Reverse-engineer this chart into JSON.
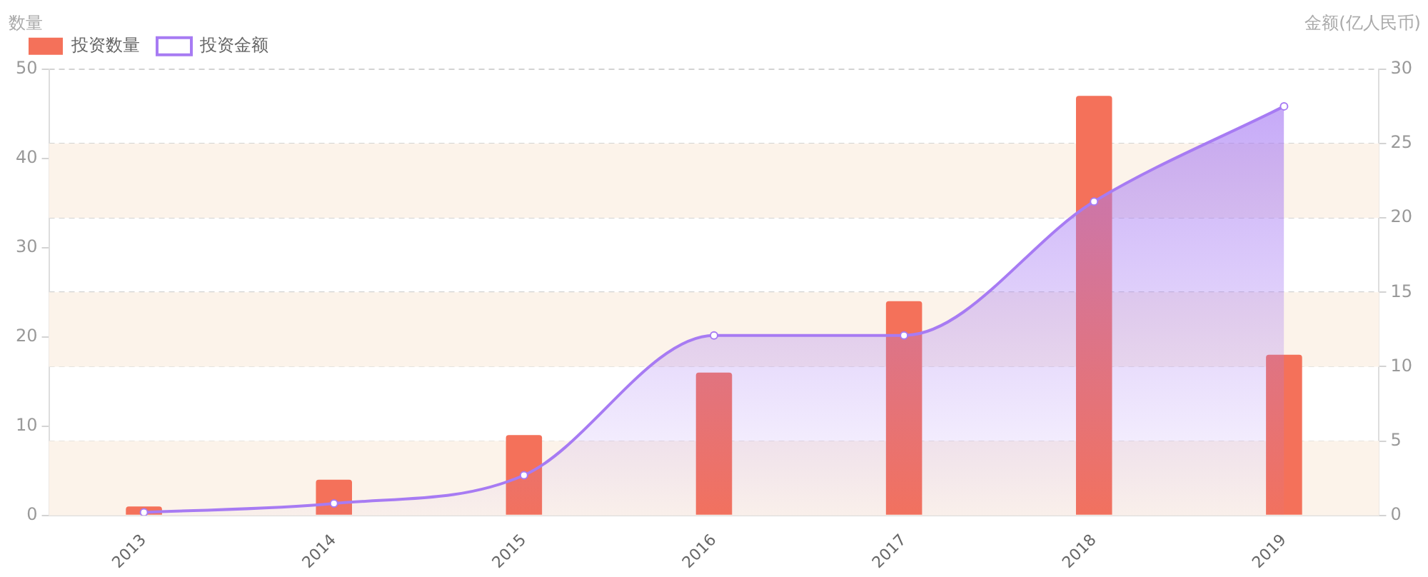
{
  "chart_data": {
    "type": "bar",
    "ylabel": "数量",
    "y2label": "金额(亿人民币)",
    "categories": [
      "2013",
      "2014",
      "2015",
      "2016",
      "2017",
      "2018",
      "2019"
    ],
    "series": [
      {
        "name": "投资数量",
        "color": "#f4715a",
        "values": [
          1,
          4,
          9,
          16,
          24,
          47,
          18
        ]
      },
      {
        "name": "投资金额",
        "type": "area",
        "axis": "y2",
        "color": "#a77bf3",
        "values": [
          0.2,
          0.8,
          2.7,
          12.1,
          12.1,
          21.1,
          27.5
        ]
      }
    ],
    "ylim": [
      0,
      50
    ],
    "yticks": [
      0,
      10,
      20,
      30,
      40,
      50
    ],
    "y2lim": [
      0,
      30
    ],
    "y2ticks": [
      0,
      5,
      10,
      15,
      20,
      25,
      30
    ],
    "bands": [
      {
        "axis": "y2",
        "from": 0,
        "to": 5,
        "color": "#fcf3ea"
      },
      {
        "axis": "y2",
        "from": 10,
        "to": 15,
        "color": "#fcf3ea"
      },
      {
        "axis": "y2",
        "from": 20,
        "to": 25,
        "color": "#fcf3ea"
      }
    ],
    "grid": "y2",
    "legend": "top left",
    "marker": "circle"
  }
}
